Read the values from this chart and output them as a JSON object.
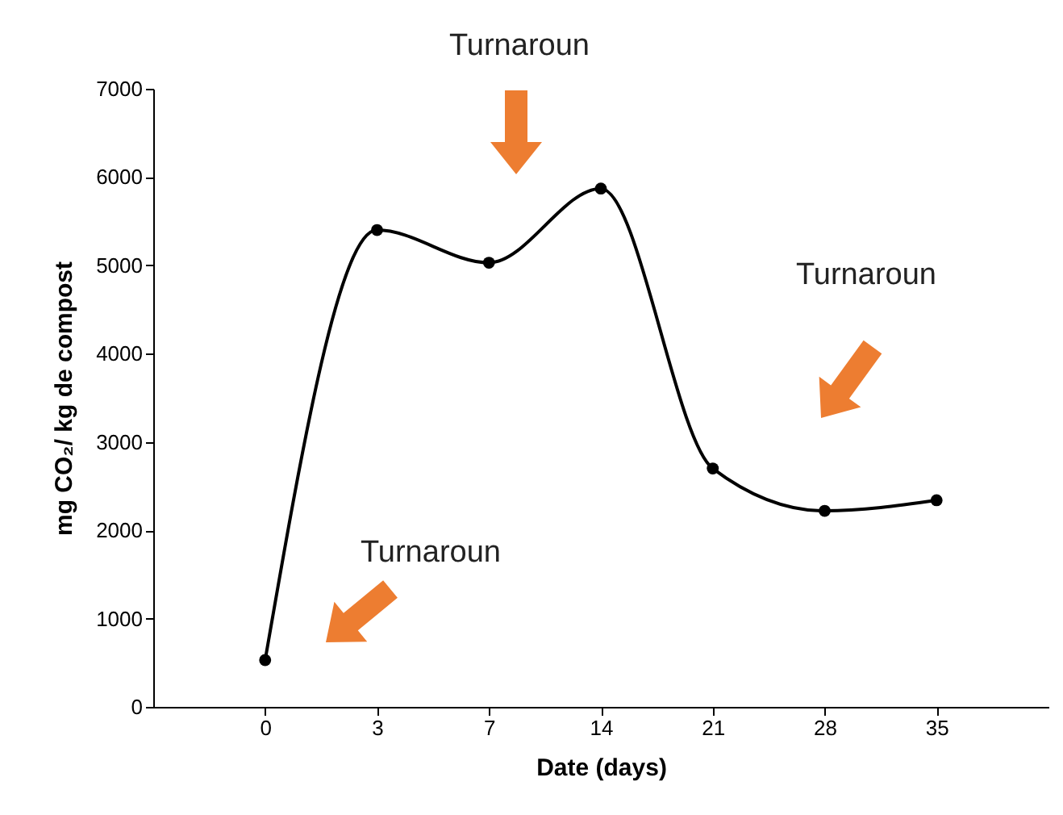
{
  "chart_data": {
    "type": "line",
    "xlabel": "Date (days)",
    "ylabel": "mg CO₂/ kg de compost",
    "categories": [
      "0",
      "3",
      "7",
      "14",
      "21",
      "28",
      "35"
    ],
    "values": [
      530,
      5400,
      5030,
      5870,
      2700,
      2220,
      2340
    ],
    "color": "#000000",
    "marker": "circle",
    "line_style": "solid",
    "ylim": [
      0,
      7000
    ],
    "yticks": [
      0,
      1000,
      2000,
      3000,
      4000,
      5000,
      6000,
      7000
    ],
    "annotations": [
      "Turnaroun",
      "Turnaroun",
      "Turnaroun"
    ]
  }
}
